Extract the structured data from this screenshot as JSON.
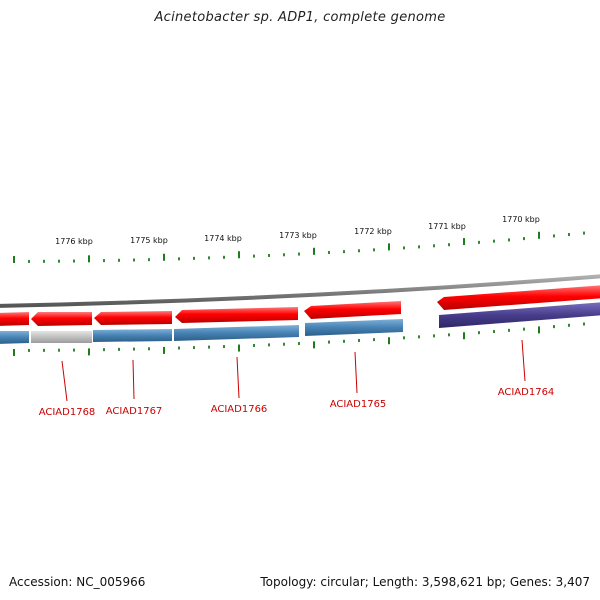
{
  "title": "Acinetobacter sp. ADP1, complete genome",
  "footer": {
    "accession": "Accession: NC_005966",
    "summary": "Topology: circular; Length: 3,598,621 bp; Genes: 3,407"
  },
  "ruler": {
    "labels": [
      "1776 kbp",
      "1775 kbp",
      "1774 kbp",
      "1773 kbp",
      "1772 kbp",
      "1771 kbp",
      "1770 kbp"
    ]
  },
  "genes": [
    {
      "locus": "ACIAD1768"
    },
    {
      "locus": "ACIAD1767"
    },
    {
      "locus": "ACIAD1766"
    },
    {
      "locus": "ACIAD1765"
    },
    {
      "locus": "ACIAD1764"
    }
  ],
  "colors": {
    "forward_strand": "#ff0000",
    "reverse_strand": "#4682b4",
    "reverse_strand_grey": "#c0c0c0",
    "reverse_strand_purple": "#483d8b",
    "backbone": "#808080",
    "tick": "#1e7b1e",
    "label": "#cc0000"
  }
}
